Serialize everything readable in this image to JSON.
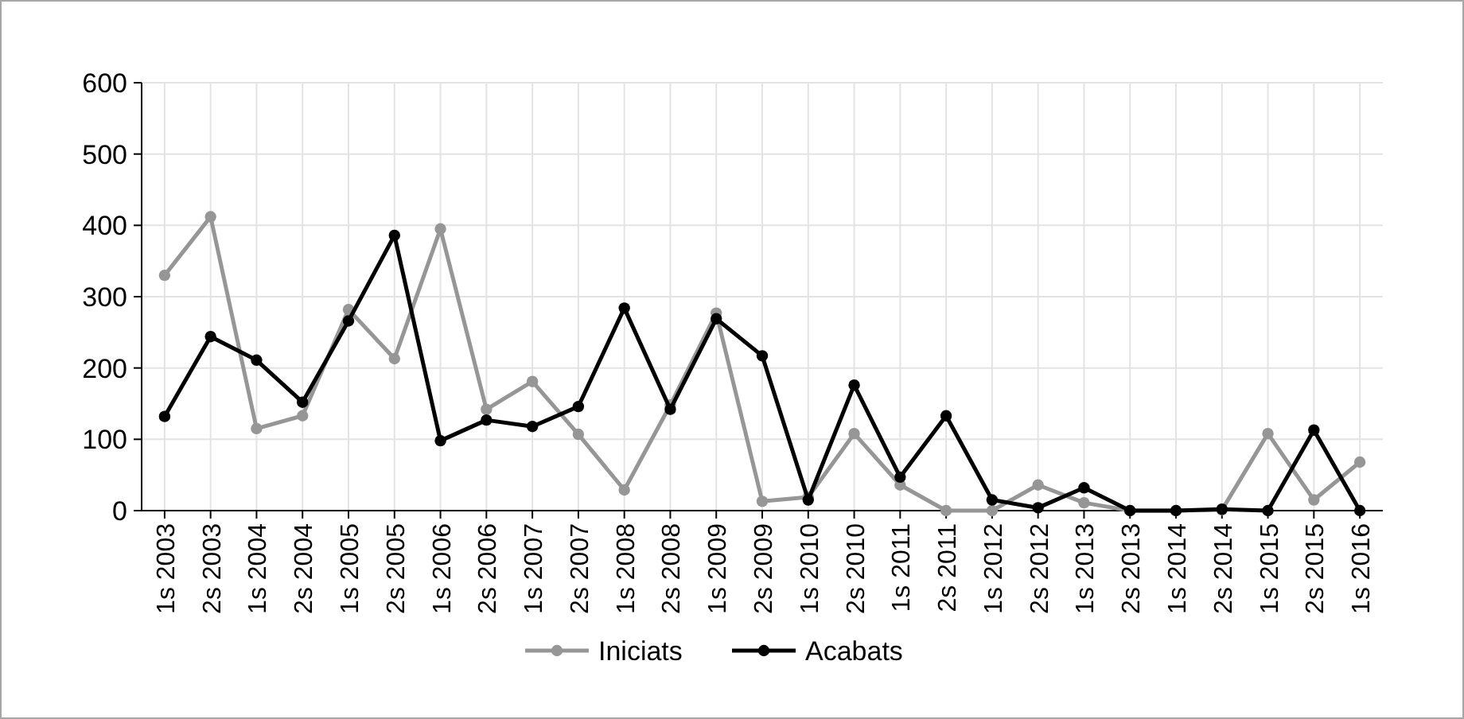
{
  "chart_data": {
    "type": "line",
    "categories": [
      "1s 2003",
      "2s 2003",
      "1s 2004",
      "2s 2004",
      "1s 2005",
      "2s 2005",
      "1s 2006",
      "2s 2006",
      "1s 2007",
      "2s 2007",
      "1s 2008",
      "2s 2008",
      "1s 2009",
      "2s 2009",
      "1s 2010",
      "2s 2010",
      "1s 2011",
      "2s 2011",
      "1s 2012",
      "2s 2012",
      "1s 2013",
      "2s 2013",
      "1s 2014",
      "2s 2014",
      "1s 2015",
      "2s 2015",
      "1s 2016"
    ],
    "series": [
      {
        "name": "Iniciats",
        "color": "#969696",
        "values": [
          330,
          412,
          115,
          133,
          282,
          213,
          395,
          142,
          181,
          107,
          29,
          148,
          277,
          13,
          19,
          108,
          36,
          0,
          0,
          36,
          11,
          0,
          0,
          1,
          108,
          15,
          68
        ]
      },
      {
        "name": "Acabats",
        "color": "#000000",
        "values": [
          132,
          244,
          211,
          152,
          266,
          386,
          98,
          127,
          118,
          146,
          284,
          142,
          269,
          217,
          15,
          176,
          47,
          133,
          15,
          4,
          32,
          0,
          0,
          2,
          0,
          113,
          0
        ]
      }
    ],
    "ylim": [
      0,
      600
    ],
    "yticks": [
      0,
      100,
      200,
      300,
      400,
      500,
      600
    ],
    "grid": true,
    "legend": "bottom",
    "marker": "circle",
    "line_style": "solid"
  }
}
